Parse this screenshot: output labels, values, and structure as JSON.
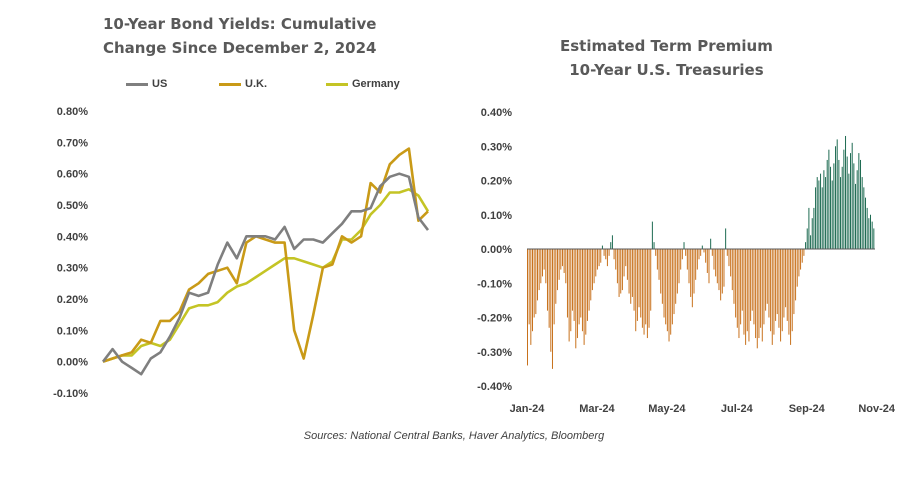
{
  "source": "Sources: National Central Banks, Haver Analytics, Bloomberg",
  "chart_data": [
    {
      "type": "line",
      "title_line1": "10-Year Bond Yields: Cumulative",
      "title_line2": "Change Since December 2, 2024",
      "ylim": [
        -0.1,
        0.8
      ],
      "y_ticks": [
        "0.80%",
        "0.70%",
        "0.60%",
        "0.50%",
        "0.40%",
        "0.30%",
        "0.20%",
        "0.10%",
        "0.00%",
        "-0.10%"
      ],
      "y_tick_values": [
        0.8,
        0.7,
        0.6,
        0.5,
        0.4,
        0.3,
        0.2,
        0.1,
        0.0,
        -0.1
      ],
      "legend": "top",
      "series": [
        {
          "name": "US",
          "color": "#7f7f7f",
          "values": [
            0.0,
            0.04,
            0.0,
            -0.02,
            -0.04,
            0.01,
            0.03,
            0.08,
            0.14,
            0.22,
            0.21,
            0.22,
            0.31,
            0.38,
            0.33,
            0.4,
            0.4,
            0.4,
            0.39,
            0.43,
            0.36,
            0.39,
            0.39,
            0.38,
            0.41,
            0.44,
            0.48,
            0.48,
            0.49,
            0.56,
            0.59,
            0.6,
            0.59,
            0.46,
            0.42
          ]
        },
        {
          "name": "U.K.",
          "color": "#c99a17",
          "values": [
            0.0,
            0.01,
            0.02,
            0.03,
            0.07,
            0.06,
            0.13,
            0.13,
            0.16,
            0.23,
            0.25,
            0.28,
            0.29,
            0.3,
            0.25,
            0.38,
            0.4,
            0.39,
            0.38,
            0.38,
            0.1,
            0.01,
            0.15,
            0.3,
            0.31,
            0.4,
            0.38,
            0.4,
            0.57,
            0.54,
            0.63,
            0.66,
            0.68,
            0.45,
            0.48
          ]
        },
        {
          "name": "Germany",
          "color": "#c4c425",
          "values": [
            0.0,
            0.01,
            0.02,
            0.02,
            0.05,
            0.06,
            0.05,
            0.07,
            0.12,
            0.17,
            0.18,
            0.18,
            0.19,
            0.22,
            0.24,
            0.25,
            0.27,
            0.29,
            0.31,
            0.33,
            0.33,
            0.32,
            0.31,
            0.3,
            0.32,
            0.39,
            0.39,
            0.42,
            0.47,
            0.5,
            0.54,
            0.54,
            0.55,
            0.53,
            0.48
          ]
        }
      ]
    },
    {
      "type": "bar",
      "title_line1": "Estimated Term Premium",
      "title_line2": "10-Year U.S. Treasuries",
      "ylim": [
        -0.4,
        0.4
      ],
      "y_ticks": [
        "0.40%",
        "0.30%",
        "0.20%",
        "0.10%",
        "0.00%",
        "-0.10%",
        "-0.20%",
        "-0.30%",
        "-0.40%"
      ],
      "y_tick_values": [
        0.4,
        0.3,
        0.2,
        0.1,
        0.0,
        -0.1,
        -0.2,
        -0.3,
        -0.4
      ],
      "x_ticks": [
        "Jan-24",
        "Mar-24",
        "May-24",
        "Jul-24",
        "Sep-24",
        "Nov-24"
      ],
      "x_tick_positions": [
        0,
        42,
        84,
        126,
        168,
        210
      ],
      "positive_color": "#1e6b52",
      "negative_color": "#c8711c",
      "values": [
        -0.34,
        -0.22,
        -0.28,
        -0.24,
        -0.2,
        -0.19,
        -0.15,
        -0.12,
        -0.1,
        -0.08,
        -0.06,
        -0.1,
        -0.18,
        -0.23,
        -0.3,
        -0.35,
        -0.22,
        -0.16,
        -0.12,
        -0.09,
        -0.06,
        -0.05,
        -0.07,
        -0.1,
        -0.2,
        -0.27,
        -0.24,
        -0.18,
        -0.21,
        -0.29,
        -0.26,
        -0.22,
        -0.2,
        -0.24,
        -0.28,
        -0.25,
        -0.21,
        -0.18,
        -0.15,
        -0.12,
        -0.1,
        -0.08,
        -0.06,
        -0.05,
        -0.04,
        0.01,
        -0.02,
        -0.03,
        -0.05,
        -0.02,
        0.02,
        0.04,
        -0.03,
        -0.06,
        -0.1,
        -0.14,
        -0.13,
        -0.12,
        -0.08,
        -0.05,
        -0.09,
        -0.13,
        -0.16,
        -0.14,
        -0.18,
        -0.24,
        -0.21,
        -0.17,
        -0.2,
        -0.23,
        -0.25,
        -0.22,
        -0.26,
        -0.23,
        -0.18,
        0.08,
        0.02,
        -0.02,
        -0.06,
        -0.09,
        -0.13,
        -0.16,
        -0.2,
        -0.22,
        -0.24,
        -0.27,
        -0.25,
        -0.22,
        -0.19,
        -0.16,
        -0.13,
        -0.1,
        -0.06,
        -0.03,
        0.02,
        -0.02,
        -0.06,
        -0.1,
        -0.14,
        -0.17,
        -0.13,
        -0.09,
        -0.06,
        -0.03,
        -0.02,
        0.01,
        -0.01,
        -0.04,
        -0.07,
        -0.1,
        0.03,
        -0.02,
        -0.06,
        -0.08,
        -0.1,
        -0.12,
        -0.15,
        -0.13,
        -0.11,
        0.06,
        -0.02,
        -0.05,
        -0.08,
        -0.12,
        -0.16,
        -0.2,
        -0.23,
        -0.26,
        -0.22,
        -0.18,
        -0.25,
        -0.28,
        -0.24,
        -0.27,
        -0.21,
        -0.18,
        -0.22,
        -0.26,
        -0.29,
        -0.26,
        -0.23,
        -0.27,
        -0.22,
        -0.18,
        -0.16,
        -0.2,
        -0.24,
        -0.28,
        -0.25,
        -0.21,
        -0.19,
        -0.23,
        -0.27,
        -0.24,
        -0.2,
        -0.17,
        -0.21,
        -0.25,
        -0.28,
        -0.24,
        -0.19,
        -0.15,
        -0.11,
        -0.08,
        -0.06,
        -0.04,
        -0.02,
        0.02,
        0.06,
        0.12,
        0.04,
        0.09,
        0.12,
        0.18,
        0.21,
        0.2,
        0.22,
        0.18,
        0.23,
        0.21,
        0.26,
        0.29,
        0.24,
        0.2,
        0.25,
        0.3,
        0.32,
        0.26,
        0.21,
        0.24,
        0.29,
        0.33,
        0.27,
        0.22,
        0.28,
        0.31,
        0.25,
        0.19,
        0.23,
        0.28,
        0.26,
        0.21,
        0.18,
        0.15,
        0.12,
        0.09,
        0.1,
        0.08,
        0.06
      ]
    }
  ]
}
